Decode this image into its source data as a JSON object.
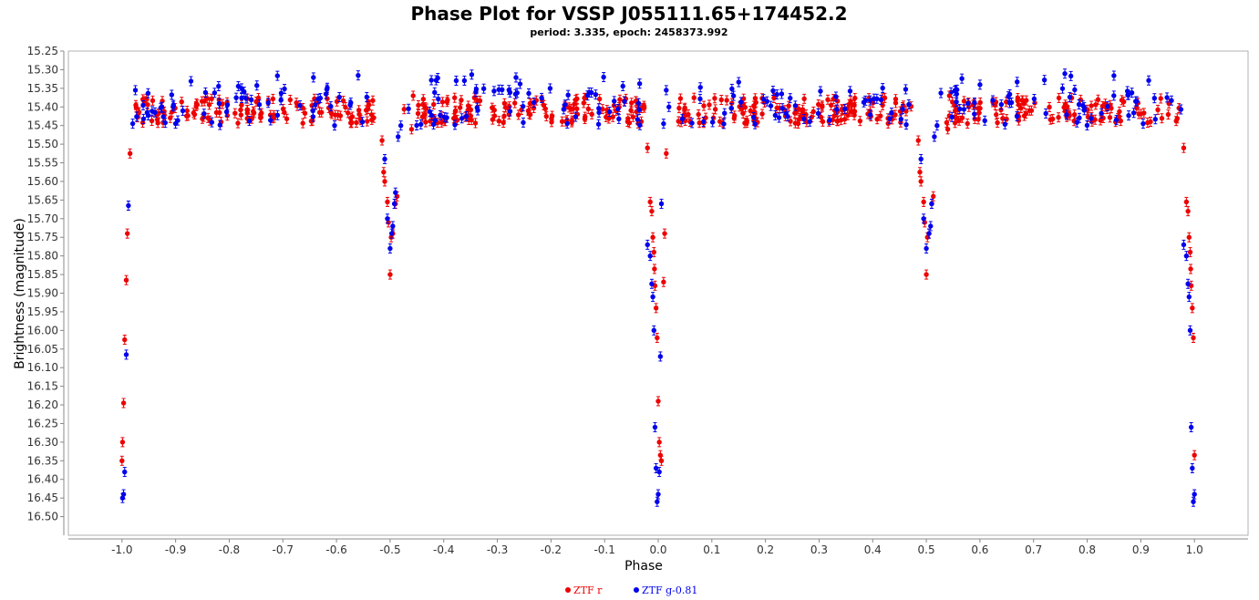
{
  "chart_data": {
    "type": "scatter",
    "title": "Phase Plot for VSSP J055111.65+174452.2",
    "subtitle": "period: 3.335, epoch: 2458373.992",
    "xlabel": "Phase",
    "ylabel": "Brightness (magnitude)",
    "xlim": [
      -1.1,
      1.1
    ],
    "ylim": [
      16.55,
      15.25
    ],
    "y_inverted": true,
    "x_ticks": [
      "-1.0",
      "-0.9",
      "-0.8",
      "-0.7",
      "-0.6",
      "-0.5",
      "-0.4",
      "-0.3",
      "-0.2",
      "-0.1",
      "0.0",
      "0.1",
      "0.2",
      "0.3",
      "0.4",
      "0.5",
      "0.6",
      "0.7",
      "0.8",
      "0.9",
      "1.0"
    ],
    "y_ticks": [
      "15.25",
      "15.30",
      "15.35",
      "15.40",
      "15.45",
      "15.50",
      "15.55",
      "15.60",
      "15.65",
      "15.70",
      "15.75",
      "15.80",
      "15.85",
      "15.90",
      "15.95",
      "16.00",
      "16.05",
      "16.10",
      "16.15",
      "16.20",
      "16.25",
      "16.30",
      "16.35",
      "16.40",
      "16.45",
      "16.50"
    ],
    "grid": false,
    "legend_position": "bottom-center",
    "series": [
      {
        "name": "ZTF r",
        "color": "#ee0000",
        "baseline": 15.41,
        "x": [
          -0.985,
          -0.99,
          -0.992,
          -0.995,
          -0.997,
          -0.999,
          -1.0,
          -0.515,
          -0.512,
          -0.51,
          -0.505,
          -0.503,
          -0.5,
          -0.498,
          -0.495,
          -0.49,
          -0.487,
          -0.46,
          -0.457,
          -0.02,
          -0.015,
          -0.012,
          -0.01,
          -0.008,
          -0.007,
          -0.006,
          -0.004,
          -0.002,
          0.0,
          0.002,
          0.004,
          0.006,
          0.01,
          0.012,
          0.015,
          0.485,
          0.488,
          0.49,
          0.495,
          0.497,
          0.5,
          0.502,
          0.505,
          0.51,
          0.513,
          0.54,
          0.543,
          0.98,
          0.985,
          0.988,
          0.99,
          0.992,
          0.993,
          0.994,
          0.996,
          0.998,
          1.0
        ],
        "y": [
          15.525,
          15.74,
          15.865,
          16.025,
          16.195,
          16.3,
          16.35,
          15.49,
          15.575,
          15.6,
          15.655,
          15.71,
          15.85,
          15.75,
          15.74,
          15.66,
          15.64,
          15.46,
          15.37,
          15.51,
          15.655,
          15.68,
          15.75,
          15.79,
          15.835,
          15.88,
          15.94,
          16.02,
          16.19,
          16.3,
          16.335,
          16.35,
          15.87,
          15.74,
          15.525,
          15.49,
          15.575,
          15.6,
          15.655,
          15.71,
          15.85,
          15.75,
          15.74,
          15.66,
          15.64,
          15.46,
          15.37,
          15.51,
          15.655,
          15.68,
          15.75,
          15.79,
          15.835,
          15.88,
          15.94,
          16.02,
          16.335
        ]
      },
      {
        "name": "ZTF g-0.81",
        "color": "#0000ee",
        "baseline": 15.4,
        "x": [
          -0.975,
          -0.98,
          -0.988,
          -0.992,
          -0.995,
          -0.997,
          -0.999,
          -0.51,
          -0.505,
          -0.5,
          -0.497,
          -0.495,
          -0.492,
          -0.49,
          -0.485,
          -0.48,
          -0.02,
          -0.015,
          -0.012,
          -0.01,
          -0.008,
          -0.006,
          -0.004,
          -0.002,
          0.0,
          0.002,
          0.004,
          0.006,
          0.01,
          0.015,
          0.02,
          0.49,
          0.495,
          0.5,
          0.505,
          0.508,
          0.51,
          0.515,
          0.52,
          0.98,
          0.985,
          0.988,
          0.99,
          0.992,
          0.994,
          0.996,
          0.998,
          1.0
        ],
        "y": [
          15.355,
          15.445,
          15.665,
          16.065,
          16.38,
          16.44,
          16.45,
          15.54,
          15.7,
          15.78,
          15.74,
          15.72,
          15.66,
          15.63,
          15.48,
          15.45,
          15.77,
          15.8,
          15.875,
          15.91,
          16.0,
          16.26,
          16.37,
          16.46,
          16.44,
          16.38,
          16.07,
          15.66,
          15.445,
          15.355,
          15.4,
          15.54,
          15.7,
          15.78,
          15.74,
          15.72,
          15.66,
          15.48,
          15.45,
          15.77,
          15.8,
          15.875,
          15.91,
          16.0,
          16.26,
          16.37,
          16.46,
          16.44
        ]
      }
    ]
  }
}
